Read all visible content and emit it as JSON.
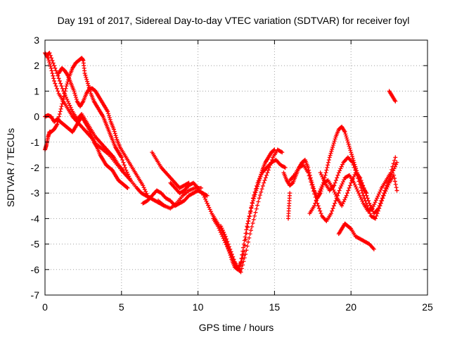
{
  "chart_data": {
    "type": "scatter",
    "title": "Day 191 of 2017, Sidereal Day-to-day VTEC variation (SDTVAR) for receiver foyl",
    "xlabel": "GPS time / hours",
    "ylabel": "SDTVAR / TECUs",
    "xlim": [
      0,
      25
    ],
    "ylim": [
      -7,
      3
    ],
    "xticks": [
      0,
      5,
      10,
      15,
      20,
      25
    ],
    "yticks": [
      -7,
      -6,
      -5,
      -4,
      -3,
      -2,
      -1,
      0,
      1,
      2,
      3
    ],
    "xtick_labels": [
      "0",
      "5",
      "10",
      "15",
      "20",
      "25"
    ],
    "ytick_labels": [
      "-7",
      "-6",
      "-5",
      "-4",
      "-3",
      "-2",
      "-1",
      "0",
      "1",
      "2",
      "3"
    ],
    "grid": true,
    "marker": "+",
    "color": "#ff0000",
    "series": [
      {
        "x": [
          0.0,
          0.2,
          0.4,
          0.6,
          0.9,
          1.2,
          1.5,
          1.8,
          2.1,
          2.4,
          2.7,
          3.0,
          3.4,
          3.8,
          4.2,
          4.6,
          5.0,
          5.3,
          5.6
        ],
        "y": [
          2.5,
          2.3,
          1.9,
          1.4,
          0.9,
          0.6,
          0.3,
          0.0,
          -0.2,
          -0.4,
          -0.6,
          -0.8,
          -1.1,
          -1.3,
          -1.5,
          -1.8,
          -2.1,
          -2.3,
          -2.5
        ]
      },
      {
        "x": [
          0.1,
          0.3,
          0.6,
          0.9,
          1.2,
          1.5,
          1.8,
          2.1,
          2.4,
          2.7,
          3.0,
          3.3,
          3.6,
          3.9,
          4.2,
          4.5,
          4.8,
          5.1
        ],
        "y": [
          2.4,
          2.5,
          2.0,
          1.5,
          1.0,
          0.6,
          0.2,
          -0.1,
          0.1,
          -0.2,
          -0.5,
          -0.8,
          -1.0,
          -1.2,
          -1.4,
          -1.6,
          -1.9,
          -2.1
        ]
      },
      {
        "x": [
          0.0,
          0.2,
          0.4,
          0.6,
          0.8,
          1.0,
          1.2,
          1.4,
          1.6,
          1.8,
          2.0,
          2.2,
          2.4,
          2.6,
          2.8,
          3.0,
          3.2,
          3.4,
          3.6,
          3.8,
          4.0,
          4.2,
          4.4,
          4.6,
          4.8,
          5.0,
          5.2,
          5.4
        ],
        "y": [
          0.0,
          0.05,
          0.0,
          -0.2,
          -0.1,
          -0.2,
          -0.3,
          -0.4,
          -0.5,
          -0.6,
          -0.4,
          -0.2,
          0.0,
          -0.2,
          -0.4,
          -0.7,
          -1.0,
          -1.2,
          -1.5,
          -1.7,
          -1.9,
          -2.0,
          -2.1,
          -2.3,
          -2.5,
          -2.6,
          -2.7,
          -2.8
        ]
      },
      {
        "x": [
          0.0,
          0.1,
          0.2,
          0.3,
          0.4,
          0.6,
          0.8,
          1.0,
          1.2,
          1.4,
          1.6,
          1.8,
          2.0,
          2.2,
          2.4,
          2.5,
          2.6,
          2.8,
          3.0,
          3.2,
          3.4,
          3.6,
          3.8,
          4.0,
          4.2,
          4.4,
          4.6,
          4.8,
          5.0,
          5.3,
          5.6,
          6.0,
          6.3,
          6.6,
          6.9,
          7.2,
          7.5,
          7.8
        ],
        "y": [
          -1.3,
          -1.1,
          -0.8,
          -0.6,
          -0.6,
          -0.5,
          -0.3,
          0.2,
          0.7,
          1.2,
          1.6,
          1.9,
          2.1,
          2.2,
          2.3,
          2.2,
          1.7,
          1.3,
          0.9,
          0.6,
          0.4,
          0.2,
          0.0,
          -0.3,
          -0.6,
          -0.9,
          -1.2,
          -1.4,
          -1.6,
          -2.1,
          -2.5,
          -2.8,
          -3.0,
          -3.1,
          -3.2,
          -3.3,
          -3.4,
          -3.5
        ]
      },
      {
        "x": [
          0.9,
          1.1,
          1.3,
          1.5,
          1.7,
          1.9,
          2.1,
          2.3,
          2.5,
          2.7,
          2.9,
          3.1,
          3.3,
          3.5,
          3.7,
          3.9,
          4.1,
          4.3,
          4.5,
          4.7,
          4.9,
          5.2,
          5.5,
          5.8,
          6.1,
          6.4,
          6.7
        ],
        "y": [
          1.7,
          1.9,
          1.8,
          1.6,
          1.3,
          1.0,
          0.6,
          0.4,
          0.6,
          0.9,
          1.1,
          1.1,
          1.0,
          0.8,
          0.6,
          0.4,
          0.2,
          -0.2,
          -0.5,
          -0.9,
          -1.2,
          -1.5,
          -1.8,
          -2.1,
          -2.4,
          -2.7,
          -3.1
        ]
      },
      {
        "x": [
          6.4,
          6.7,
          7.0,
          7.3,
          7.6,
          7.9,
          8.2,
          8.5,
          8.8,
          9.1,
          9.4,
          9.7,
          10.0,
          10.3,
          10.6
        ],
        "y": [
          -3.4,
          -3.3,
          -3.1,
          -2.9,
          -3.0,
          -3.2,
          -3.3,
          -3.5,
          -3.4,
          -3.3,
          -3.1,
          -3.0,
          -2.9,
          -3.0,
          -3.1
        ]
      },
      {
        "x": [
          7.0,
          7.3,
          7.6,
          7.9,
          8.2,
          8.5,
          8.8,
          9.1,
          9.4
        ],
        "y": [
          -1.4,
          -1.7,
          -2.0,
          -2.2,
          -2.4,
          -2.6,
          -2.8,
          -2.7,
          -2.6
        ]
      },
      {
        "x": [
          7.4,
          7.8,
          8.2,
          8.6,
          9.0,
          9.4,
          9.8,
          10.2
        ],
        "y": [
          -3.3,
          -3.5,
          -3.6,
          -3.4,
          -3.1,
          -2.9,
          -2.8,
          -2.8
        ]
      },
      {
        "x": [
          8.2,
          8.5,
          8.8,
          9.1,
          9.4,
          9.7,
          10.0
        ],
        "y": [
          -2.6,
          -2.8,
          -3.0,
          -2.9,
          -2.7,
          -2.6,
          -2.8
        ]
      },
      {
        "x": [
          10.0,
          10.3,
          10.6,
          10.9,
          11.2,
          11.5,
          11.8,
          12.0,
          12.2,
          12.4,
          12.6,
          12.8,
          13.0,
          13.2,
          13.4,
          13.6,
          13.8,
          14.0,
          14.2,
          14.4,
          14.6,
          14.8,
          15.0
        ],
        "y": [
          -2.9,
          -3.0,
          -3.4,
          -3.8,
          -4.1,
          -4.4,
          -4.8,
          -5.2,
          -5.6,
          -5.9,
          -6.0,
          -5.7,
          -5.0,
          -4.3,
          -3.8,
          -3.3,
          -2.9,
          -2.5,
          -2.1,
          -1.8,
          -1.6,
          -1.4,
          -1.3
        ]
      },
      {
        "x": [
          11.0,
          11.3,
          11.6,
          11.9,
          12.2,
          12.5,
          12.8,
          13.1,
          13.4,
          13.7,
          14.0,
          14.3,
          14.6,
          14.9,
          15.2,
          15.5
        ],
        "y": [
          -4.0,
          -4.3,
          -4.7,
          -5.1,
          -5.5,
          -5.9,
          -6.1,
          -5.4,
          -4.6,
          -3.9,
          -3.2,
          -2.6,
          -2.1,
          -1.6,
          -1.3,
          -1.4
        ]
      },
      {
        "x": [
          11.5,
          11.8,
          12.1,
          12.4,
          12.7,
          13.0,
          13.3,
          13.6,
          13.9,
          14.2,
          14.5,
          14.8,
          15.1,
          15.4,
          15.7
        ],
        "y": [
          -4.3,
          -4.7,
          -5.2,
          -5.7,
          -6.0,
          -5.3,
          -4.1,
          -3.2,
          -2.6,
          -2.2,
          -2.0,
          -1.8,
          -1.7,
          -1.9,
          -2.0
        ]
      },
      {
        "x": [
          15.6,
          15.8,
          16.0,
          16.2,
          16.4,
          16.6,
          16.8,
          17.0,
          17.2,
          17.4,
          17.6,
          17.8,
          18.0,
          18.2,
          18.4,
          18.6,
          18.8,
          19.0,
          19.2,
          19.4,
          19.6,
          19.8,
          20.0,
          20.2,
          20.4,
          20.6,
          20.8,
          21.0
        ],
        "y": [
          -2.2,
          -2.5,
          -2.7,
          -2.6,
          -2.3,
          -2.0,
          -1.8,
          -1.7,
          -2.0,
          -2.5,
          -2.9,
          -3.2,
          -3.0,
          -2.6,
          -2.1,
          -1.6,
          -1.2,
          -0.8,
          -0.5,
          -0.4,
          -0.6,
          -1.0,
          -1.4,
          -1.8,
          -2.2,
          -2.5,
          -2.8,
          -3.0
        ]
      },
      {
        "x": [
          16.0,
          16.3,
          16.6,
          16.9,
          17.2,
          17.5,
          17.8,
          18.1,
          18.4,
          18.7,
          19.0,
          19.3,
          19.6,
          19.9,
          20.2,
          20.5,
          20.8,
          21.1,
          21.4,
          21.7,
          22.0,
          22.3,
          22.6,
          22.9
        ],
        "y": [
          -2.5,
          -2.3,
          -2.0,
          -1.9,
          -2.2,
          -2.8,
          -3.4,
          -3.9,
          -4.1,
          -3.8,
          -3.3,
          -2.8,
          -2.4,
          -2.3,
          -2.6,
          -3.0,
          -3.4,
          -3.7,
          -3.6,
          -3.2,
          -2.8,
          -2.5,
          -2.2,
          -1.6
        ]
      },
      {
        "x": [
          17.3,
          17.6,
          17.9,
          18.2,
          18.5,
          18.8,
          19.1,
          19.4,
          19.7,
          20.0,
          20.3,
          20.6,
          20.9,
          21.2,
          21.5,
          21.8,
          22.1,
          22.4,
          22.7,
          23.0
        ],
        "y": [
          -3.8,
          -3.5,
          -3.0,
          -2.6,
          -2.5,
          -2.8,
          -3.2,
          -3.5,
          -3.1,
          -2.6,
          -2.2,
          -2.4,
          -2.9,
          -3.4,
          -3.8,
          -3.6,
          -3.1,
          -2.6,
          -2.2,
          -1.8
        ]
      },
      {
        "x": [
          18.0,
          18.3,
          18.6,
          18.9,
          19.2,
          19.5,
          19.8,
          20.1,
          20.4,
          20.7,
          21.0,
          21.3,
          21.6,
          21.9,
          22.2,
          22.5,
          22.8,
          23.0
        ],
        "y": [
          -2.2,
          -2.6,
          -2.9,
          -2.7,
          -2.2,
          -1.8,
          -1.6,
          -1.8,
          -2.3,
          -2.9,
          -3.4,
          -3.9,
          -4.0,
          -3.5,
          -3.0,
          -2.6,
          -2.3,
          -2.9
        ]
      },
      {
        "x": [
          15.9,
          15.95,
          16.0
        ],
        "y": [
          -4.0,
          -3.5,
          -3.0
        ]
      },
      {
        "x": [
          19.2,
          19.4,
          19.6,
          19.8,
          20.0,
          20.3,
          20.6,
          20.9,
          21.2,
          21.5
        ],
        "y": [
          -4.6,
          -4.4,
          -4.2,
          -4.3,
          -4.4,
          -4.7,
          -4.8,
          -4.9,
          -5.0,
          -5.2
        ]
      },
      {
        "x": [
          22.5,
          22.7,
          22.9
        ],
        "y": [
          1.0,
          0.8,
          0.6
        ]
      }
    ]
  }
}
